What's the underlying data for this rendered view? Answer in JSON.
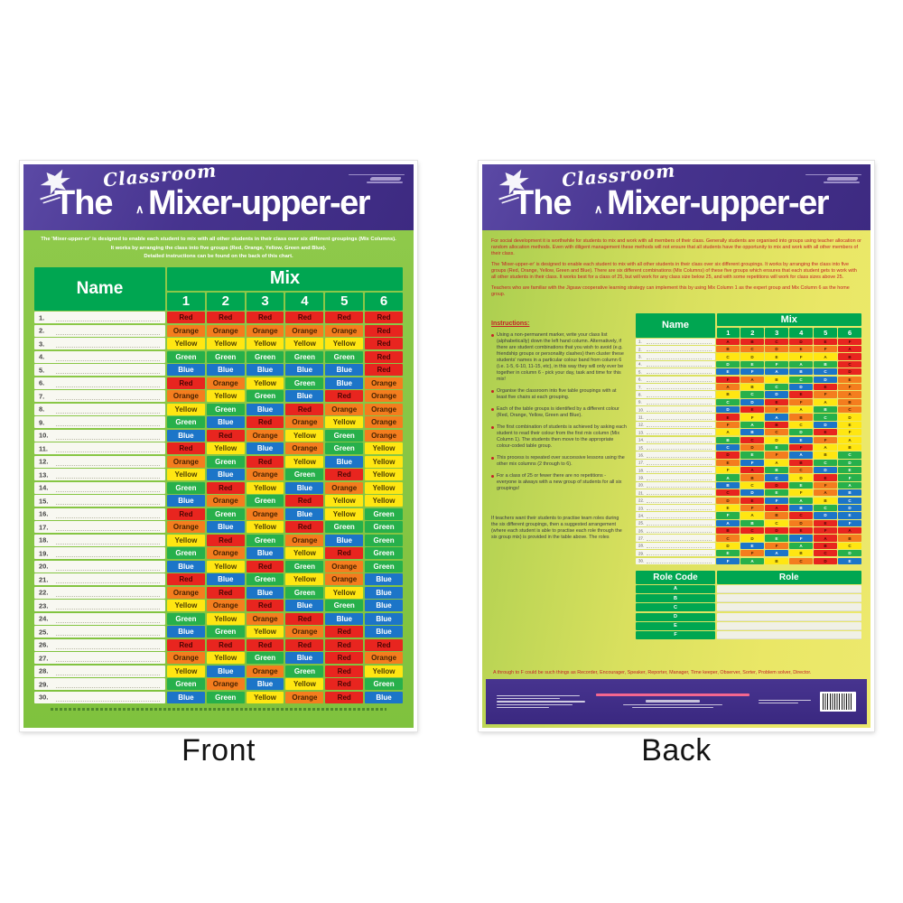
{
  "colors": {
    "Red": "#e8251f",
    "Orange": "#f47d1e",
    "Yellow": "#ffe612",
    "Green": "#27b04b",
    "Blue": "#1c75c8",
    "header_green": "#00a651",
    "header_purple": "#46338e",
    "accent_red_text": "#c32127"
  },
  "front": {
    "label": "Front",
    "title_the": "The",
    "title_classroom": "Classroom",
    "title_caret": "∧",
    "title_main": "Mixer-upper-er",
    "intro_lines": [
      "The 'Mixer-upper-er' is designed to enable each student to mix with all other students in their class over six different groupings (Mix Columns).",
      "It works by arranging the class into five groups (Red, Orange, Yellow, Green and Blue).",
      "Detailed instructions can be found on the back of this chart."
    ],
    "table": {
      "name_header": "Name",
      "mix_header": "Mix",
      "col_numbers": [
        "1",
        "2",
        "3",
        "4",
        "5",
        "6"
      ],
      "rows": [
        {
          "num": "1.",
          "colors": [
            "Red",
            "Red",
            "Red",
            "Red",
            "Red",
            "Red"
          ]
        },
        {
          "num": "2.",
          "colors": [
            "Orange",
            "Orange",
            "Orange",
            "Orange",
            "Orange",
            "Red"
          ]
        },
        {
          "num": "3.",
          "colors": [
            "Yellow",
            "Yellow",
            "Yellow",
            "Yellow",
            "Yellow",
            "Red"
          ]
        },
        {
          "num": "4.",
          "colors": [
            "Green",
            "Green",
            "Green",
            "Green",
            "Green",
            "Red"
          ]
        },
        {
          "num": "5.",
          "colors": [
            "Blue",
            "Blue",
            "Blue",
            "Blue",
            "Blue",
            "Red"
          ]
        },
        {
          "num": "6.",
          "colors": [
            "Red",
            "Orange",
            "Yellow",
            "Green",
            "Blue",
            "Orange"
          ]
        },
        {
          "num": "7.",
          "colors": [
            "Orange",
            "Yellow",
            "Green",
            "Blue",
            "Red",
            "Orange"
          ]
        },
        {
          "num": "8.",
          "colors": [
            "Yellow",
            "Green",
            "Blue",
            "Red",
            "Orange",
            "Orange"
          ]
        },
        {
          "num": "9.",
          "colors": [
            "Green",
            "Blue",
            "Red",
            "Orange",
            "Yellow",
            "Orange"
          ]
        },
        {
          "num": "10.",
          "colors": [
            "Blue",
            "Red",
            "Orange",
            "Yellow",
            "Green",
            "Orange"
          ]
        },
        {
          "num": "11.",
          "colors": [
            "Red",
            "Yellow",
            "Blue",
            "Orange",
            "Green",
            "Yellow"
          ]
        },
        {
          "num": "12.",
          "colors": [
            "Orange",
            "Green",
            "Red",
            "Yellow",
            "Blue",
            "Yellow"
          ]
        },
        {
          "num": "13.",
          "colors": [
            "Yellow",
            "Blue",
            "Orange",
            "Green",
            "Red",
            "Yellow"
          ]
        },
        {
          "num": "14.",
          "colors": [
            "Green",
            "Red",
            "Yellow",
            "Blue",
            "Orange",
            "Yellow"
          ]
        },
        {
          "num": "15.",
          "colors": [
            "Blue",
            "Orange",
            "Green",
            "Red",
            "Yellow",
            "Yellow"
          ]
        },
        {
          "num": "16.",
          "colors": [
            "Red",
            "Green",
            "Orange",
            "Blue",
            "Yellow",
            "Green"
          ]
        },
        {
          "num": "17.",
          "colors": [
            "Orange",
            "Blue",
            "Yellow",
            "Red",
            "Green",
            "Green"
          ]
        },
        {
          "num": "18.",
          "colors": [
            "Yellow",
            "Red",
            "Green",
            "Orange",
            "Blue",
            "Green"
          ]
        },
        {
          "num": "19.",
          "colors": [
            "Green",
            "Orange",
            "Blue",
            "Yellow",
            "Red",
            "Green"
          ]
        },
        {
          "num": "20.",
          "colors": [
            "Blue",
            "Yellow",
            "Red",
            "Green",
            "Orange",
            "Green"
          ]
        },
        {
          "num": "21.",
          "colors": [
            "Red",
            "Blue",
            "Green",
            "Yellow",
            "Orange",
            "Blue"
          ]
        },
        {
          "num": "22.",
          "colors": [
            "Orange",
            "Red",
            "Blue",
            "Green",
            "Yellow",
            "Blue"
          ]
        },
        {
          "num": "23.",
          "colors": [
            "Yellow",
            "Orange",
            "Red",
            "Blue",
            "Green",
            "Blue"
          ]
        },
        {
          "num": "24.",
          "colors": [
            "Green",
            "Yellow",
            "Orange",
            "Red",
            "Blue",
            "Blue"
          ]
        },
        {
          "num": "25.",
          "colors": [
            "Blue",
            "Green",
            "Yellow",
            "Orange",
            "Red",
            "Blue"
          ]
        },
        {
          "num": "26.",
          "colors": [
            "Red",
            "Red",
            "Red",
            "Red",
            "Red",
            "Red"
          ]
        },
        {
          "num": "27.",
          "colors": [
            "Orange",
            "Yellow",
            "Green",
            "Blue",
            "Red",
            "Orange"
          ]
        },
        {
          "num": "28.",
          "colors": [
            "Yellow",
            "Blue",
            "Orange",
            "Green",
            "Red",
            "Yellow"
          ]
        },
        {
          "num": "29.",
          "colors": [
            "Green",
            "Orange",
            "Blue",
            "Yellow",
            "Red",
            "Green"
          ]
        },
        {
          "num": "30.",
          "colors": [
            "Blue",
            "Green",
            "Yellow",
            "Orange",
            "Red",
            "Blue"
          ]
        }
      ]
    }
  },
  "back": {
    "label": "Back",
    "intro_paragraphs": [
      "For social development it is worthwhile for students to mix and work with all members of their class. Generally students are organised into groups using teacher allocation or random allocation methods. Even with diligent management these methods will not ensure that all students have the opportunity to mix and work with all other members of their class.",
      "The 'Mixer-upper-er' is designed to enable each student to mix with all other students in their class over six different groupings. It works by arranging the class into five groups (Red, Orange, Yellow, Green and Blue). There are six different combinations (Mix Columns) of these five groups which ensures that each student gets to work with all other students in their class. It works best for a class of 25, but will work for any class size below 25, and with some repetitions will work for class sizes above 25.",
      "Teachers who are familiar with the Jigsaw cooperative learning strategy can implement this by using Mix Column 1 as the expert group and Mix Column 6 as the home group."
    ],
    "instructions_heading": "Instructions:",
    "bullets": [
      "Using a non-permanent marker, write your class list (alphabetically) down the left hand column.  Alternatively, if there are student combinations that you wish to avoid (e.g. friendship groups or personality clashes) then cluster these students' names in a particular colour band from column 6 (i.e. 1-5, 6-10, 11-15, etc), in this way they will only ever be together in column 6 - pick your day, task and time for this mix!",
      "Organise the classroom into five table groupings with at least five chairs at each grouping.",
      "Each of the table groups is identified by a different colour (Red, Orange, Yellow, Green and Blue).",
      "The first combination of students is achieved by asking each student to read their colour from the first mix column (Mix Column 1). The students then move to the appropriate colour-coded table group.",
      "This process is repeated over successive lessons using the other mix columns (2 through to 6).",
      "For a class of 25 or fewer there are no repetitions - everyone is always with a new group of students for all six groupings!"
    ],
    "table": {
      "name_header": "Name",
      "mix_header": "Mix",
      "col_numbers": [
        "1",
        "2",
        "3",
        "4",
        "5",
        "6"
      ],
      "letters": [
        "ABCDEF",
        "BCDEFA",
        "CDEFAB",
        "DEFABC",
        "EFABCD",
        "FABCDE",
        "ABCDEF",
        "BCDEFA",
        "CDEFAB",
        "DEFABC",
        "EFABCD",
        "FABCDE",
        "ABCDEF",
        "BCDEFA",
        "CDEFAB",
        "DEFABC",
        "EFABCD",
        "FABCDE",
        "ABCDEF",
        "BCDEFA",
        "CDEFAB",
        "DEFABC",
        "EFABCD",
        "FABCDE",
        "ABCDEF",
        "BCDEFA",
        "CDEFAB",
        "DEFABC",
        "EFABCD",
        "FABCDE"
      ]
    },
    "roles_paragraph": "If teachers want their students to practise team roles during the six different groupings, then a suggested arrangement (where each student is able to practise each role through the six group mix) is provided in the table above.  The roles",
    "roles_line": "A through to F could be such things as Recorder, Encourager, Speaker, Reporter, Manager, Time keeper, Observer, Sorter, Problem solver, Director.",
    "role_table": {
      "code_header": "Role Code",
      "role_header": "Role",
      "codes": [
        "A",
        "B",
        "C",
        "D",
        "E",
        "F"
      ]
    }
  }
}
